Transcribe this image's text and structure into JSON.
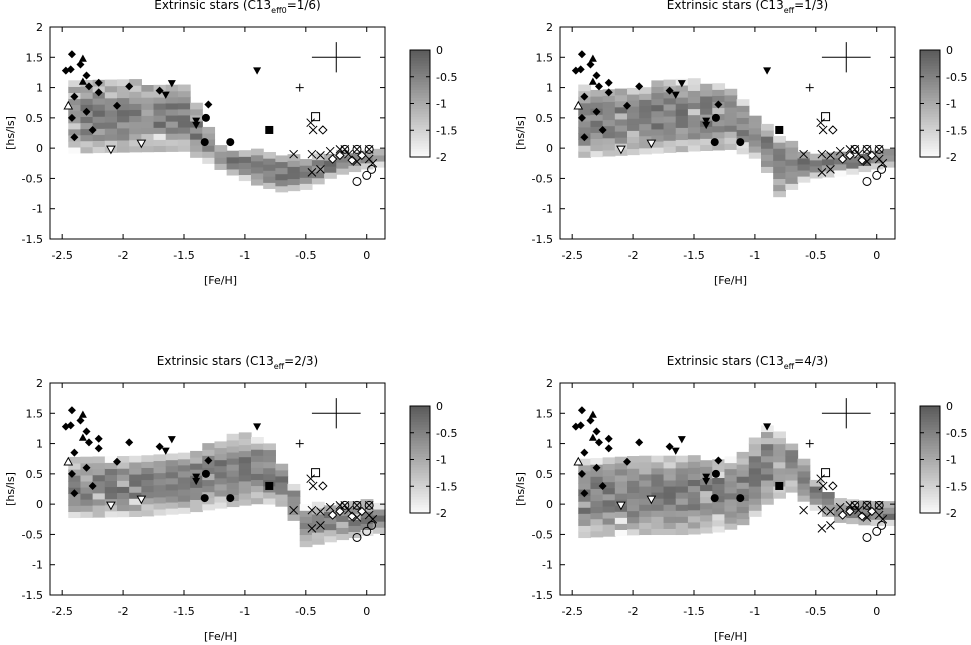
{
  "chart_data": [
    {
      "type": "heatmap",
      "title": "Extrinsic stars (C13",
      "title_sub": "eff0",
      "title_tail": "=1/6)",
      "xlabel": "[Fe/H]",
      "ylabel": "[hs/ls]",
      "xlim": [
        -2.6,
        0.15
      ],
      "ylim": [
        -1.5,
        2
      ],
      "xticks": [
        "-2.5",
        "-2",
        "-1.5",
        "-1",
        "-0.5",
        "0"
      ],
      "yticks": [
        "-1.5",
        "-1",
        "-0.5",
        "0",
        "0.5",
        "1",
        "1.5",
        "2"
      ],
      "colorbar": {
        "ticks": [
          "0",
          "-0.5",
          "-1",
          "-1.5",
          "-2"
        ],
        "range": [
          -2,
          0
        ]
      },
      "grid": false,
      "band": [
        [
          -2.45,
          1.08,
          -0.08
        ],
        [
          -1.95,
          1.05,
          -0.06
        ],
        [
          -1.55,
          1.02,
          -0.05
        ],
        [
          -1.25,
          -0.03,
          -0.35
        ],
        [
          -1.0,
          -0.08,
          -0.58
        ],
        [
          -0.75,
          -0.15,
          -0.72
        ],
        [
          -0.55,
          -0.18,
          -0.68
        ],
        [
          -0.3,
          -0.12,
          -0.45
        ],
        [
          0.0,
          -0.08,
          -0.32
        ],
        [
          0.12,
          -0.1,
          -0.3
        ]
      ]
    },
    {
      "type": "heatmap",
      "title": "Extrinsic stars (C13",
      "title_sub": "eff",
      "title_tail": "=1/3)",
      "xlabel": "[Fe/H]",
      "ylabel": "[hs/ls]",
      "xlim": [
        -2.6,
        0.15
      ],
      "ylim": [
        -1.5,
        2
      ],
      "xticks": [
        "-2.5",
        "-2",
        "-1.5",
        "-1",
        "-0.5",
        "0"
      ],
      "yticks": [
        "-1.5",
        "-1",
        "-0.5",
        "0",
        "0.5",
        "1",
        "1.5",
        "2"
      ],
      "colorbar": {
        "ticks": [
          "0",
          "-0.5",
          "-1",
          "-1.5",
          "-2"
        ],
        "range": [
          -2,
          0
        ]
      },
      "grid": false,
      "band": [
        [
          -2.45,
          0.95,
          -0.15
        ],
        [
          -2.0,
          0.98,
          -0.1
        ],
        [
          -1.6,
          1.12,
          -0.05
        ],
        [
          -1.25,
          0.95,
          -0.02
        ],
        [
          -1.0,
          0.4,
          -0.2
        ],
        [
          -0.85,
          0.15,
          -0.8
        ],
        [
          -0.6,
          -0.15,
          -0.5
        ],
        [
          -0.3,
          -0.1,
          -0.45
        ],
        [
          0.0,
          -0.05,
          -0.32
        ],
        [
          0.12,
          -0.1,
          -0.3
        ]
      ]
    },
    {
      "type": "heatmap",
      "title": "Extrinsic stars (C13",
      "title_sub": "eff",
      "title_tail": "=2/3)",
      "xlabel": "[Fe/H]",
      "ylabel": "[hs/ls]",
      "xlim": [
        -2.6,
        0.15
      ],
      "ylim": [
        -1.5,
        2
      ],
      "xticks": [
        "-2.5",
        "-2",
        "-1.5",
        "-1",
        "-0.5",
        "0"
      ],
      "yticks": [
        "-1.5",
        "-1",
        "-0.5",
        "0",
        "0.5",
        "1",
        "1.5",
        "2"
      ],
      "colorbar": {
        "ticks": [
          "0",
          "-0.5",
          "-1",
          "-1.5",
          "-2"
        ],
        "range": [
          -2,
          0
        ]
      },
      "grid": false,
      "band": [
        [
          -2.45,
          0.72,
          -0.22
        ],
        [
          -1.9,
          0.72,
          -0.2
        ],
        [
          -1.55,
          0.8,
          -0.15
        ],
        [
          -1.2,
          1.05,
          -0.05
        ],
        [
          -0.9,
          1.12,
          0.02
        ],
        [
          -0.7,
          0.5,
          -0.05
        ],
        [
          -0.55,
          -0.05,
          -0.7
        ],
        [
          -0.3,
          -0.05,
          -0.6
        ],
        [
          0.0,
          0.0,
          -0.5
        ],
        [
          0.12,
          -0.05,
          -0.45
        ]
      ]
    },
    {
      "type": "heatmap",
      "title": "Extrinsic stars (C13",
      "title_sub": "eff",
      "title_tail": "=4/3)",
      "xlabel": "[Fe/H]",
      "ylabel": "[hs/ls]",
      "xlim": [
        -2.6,
        0.15
      ],
      "ylim": [
        -1.5,
        2
      ],
      "xticks": [
        "-2.5",
        "-2",
        "-1.5",
        "-1",
        "-0.5",
        "0"
      ],
      "yticks": [
        "-1.5",
        "-1",
        "-0.5",
        "0",
        "0.5",
        "1",
        "1.5",
        "2"
      ],
      "colorbar": {
        "ticks": [
          "0",
          "-0.5",
          "-1",
          "-1.5",
          "-2"
        ],
        "range": [
          -2,
          0
        ]
      },
      "grid": false,
      "band": [
        [
          -2.45,
          0.72,
          -0.55
        ],
        [
          -2.0,
          0.72,
          -0.5
        ],
        [
          -1.6,
          0.72,
          -0.5
        ],
        [
          -1.3,
          0.72,
          -0.45
        ],
        [
          -1.1,
          0.85,
          -0.3
        ],
        [
          -0.95,
          1.3,
          0.0
        ],
        [
          -0.75,
          1.0,
          0.2
        ],
        [
          -0.55,
          0.4,
          -0.1
        ],
        [
          -0.35,
          0.0,
          -0.3
        ],
        [
          -0.1,
          0.0,
          -0.35
        ],
        [
          0.12,
          -0.05,
          -0.35
        ]
      ]
    }
  ],
  "observations": [
    {
      "m": "fdiamond",
      "x": -2.47,
      "y": 1.28
    },
    {
      "m": "fdiamond",
      "x": -2.43,
      "y": 1.3
    },
    {
      "m": "fdiamond",
      "x": -2.42,
      "y": 1.55
    },
    {
      "m": "fdiamond",
      "x": -2.4,
      "y": 0.85
    },
    {
      "m": "fdiamond",
      "x": -2.42,
      "y": 0.5
    },
    {
      "m": "fdiamond",
      "x": -2.4,
      "y": 0.18
    },
    {
      "m": "fdiamond",
      "x": -2.35,
      "y": 1.38
    },
    {
      "m": "fdiamond",
      "x": -2.3,
      "y": 1.2
    },
    {
      "m": "fdiamond",
      "x": -2.28,
      "y": 1.02
    },
    {
      "m": "fdiamond",
      "x": -2.3,
      "y": 0.6
    },
    {
      "m": "fdiamond",
      "x": -2.25,
      "y": 0.3
    },
    {
      "m": "fdiamond",
      "x": -2.2,
      "y": 1.08
    },
    {
      "m": "fdiamond",
      "x": -2.2,
      "y": 0.92
    },
    {
      "m": "fdiamond",
      "x": -2.05,
      "y": 0.7
    },
    {
      "m": "fdiamond",
      "x": -1.95,
      "y": 1.02
    },
    {
      "m": "fdiamond",
      "x": -1.7,
      "y": 0.95
    },
    {
      "m": "fdiamond",
      "x": -1.3,
      "y": 0.72
    },
    {
      "m": "ftri",
      "x": -2.33,
      "y": 1.48
    },
    {
      "m": "ftri",
      "x": -2.33,
      "y": 1.1
    },
    {
      "m": "otri",
      "x": -2.45,
      "y": 0.7
    },
    {
      "m": "ftrid",
      "x": -1.6,
      "y": 1.07
    },
    {
      "m": "ftrid",
      "x": -1.65,
      "y": 0.88
    },
    {
      "m": "ftrid",
      "x": -1.4,
      "y": 0.45
    },
    {
      "m": "ftrid",
      "x": -1.4,
      "y": 0.38
    },
    {
      "m": "ftrid",
      "x": -0.9,
      "y": 1.28
    },
    {
      "m": "otrid",
      "x": -2.1,
      "y": -0.02
    },
    {
      "m": "otrid",
      "x": -1.85,
      "y": 0.08
    },
    {
      "m": "fcircle",
      "x": -1.32,
      "y": 0.5
    },
    {
      "m": "fcircle",
      "x": -1.33,
      "y": 0.1
    },
    {
      "m": "fcircle",
      "x": -1.12,
      "y": 0.1
    },
    {
      "m": "fsquare",
      "x": -0.8,
      "y": 0.3
    },
    {
      "m": "osquare",
      "x": -0.42,
      "y": 0.52
    },
    {
      "m": "plus",
      "x": -0.55,
      "y": 1.0
    },
    {
      "m": "odiamond",
      "x": -0.36,
      "y": 0.3
    },
    {
      "m": "odiamond",
      "x": -0.28,
      "y": -0.18
    },
    {
      "m": "odiamond",
      "x": -0.22,
      "y": -0.12
    },
    {
      "m": "odiamond",
      "x": -0.12,
      "y": -0.2
    },
    {
      "m": "odiamond",
      "x": -0.04,
      "y": -0.12
    },
    {
      "m": "cross",
      "x": -0.46,
      "y": 0.42
    },
    {
      "m": "cross",
      "x": -0.44,
      "y": 0.3
    },
    {
      "m": "cross",
      "x": -0.6,
      "y": -0.1
    },
    {
      "m": "cross",
      "x": -0.45,
      "y": -0.1
    },
    {
      "m": "cross",
      "x": -0.38,
      "y": -0.12
    },
    {
      "m": "cross",
      "x": -0.45,
      "y": -0.4
    },
    {
      "m": "cross",
      "x": -0.38,
      "y": -0.35
    },
    {
      "m": "cross",
      "x": -0.3,
      "y": -0.05
    },
    {
      "m": "cross",
      "x": -0.22,
      "y": -0.02
    },
    {
      "m": "cross",
      "x": -0.15,
      "y": -0.1
    },
    {
      "m": "cross",
      "x": -0.08,
      "y": -0.22
    },
    {
      "m": "cross",
      "x": 0.02,
      "y": -0.18
    },
    {
      "m": "cross",
      "x": 0.05,
      "y": -0.25
    },
    {
      "m": "ocross",
      "x": -0.18,
      "y": -0.02
    },
    {
      "m": "ocross",
      "x": -0.08,
      "y": -0.02
    },
    {
      "m": "ocross",
      "x": 0.02,
      "y": -0.02
    },
    {
      "m": "ocircle",
      "x": -0.08,
      "y": -0.55
    },
    {
      "m": "ocircle",
      "x": 0.0,
      "y": -0.45
    },
    {
      "m": "ocircle",
      "x": 0.04,
      "y": -0.35
    }
  ],
  "error_bar": {
    "x": -0.25,
    "y": 1.5,
    "dx": 0.2,
    "dy": 0.25
  }
}
